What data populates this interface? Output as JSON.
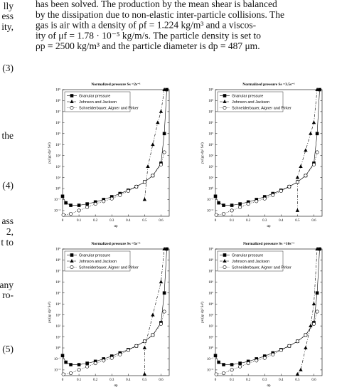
{
  "page": {
    "left_fragments": [
      "lly",
      "ess",
      "ity,",
      "(3)",
      "the",
      "(4)",
      "ass",
      "2,",
      "t to",
      "any",
      "ro-",
      "(5)"
    ],
    "top_lines": [
      "has been solved. The production by the mean shear is balanced",
      "by the dissipation due to non-elastic inter-particle collisions. The",
      "gas is air with a density of ρf = 1.224 kg/m³ and a viscos-",
      "ity of μf = 1.78 · 10⁻⁵ kg/m/s. The particle density is set to",
      "ρp = 2500 kg/m³ and the particle diameter is dp = 487 μm."
    ]
  },
  "chart_data": [
    {
      "type": "line",
      "title": "Normalized pressure Ss =2s⁻¹",
      "xlabel": "αp",
      "ylabel": "ps/(ρp dp² Ss²)",
      "xlim": [
        0,
        0.65
      ],
      "xticks": [
        0,
        0.1,
        0.2,
        0.3,
        0.4,
        0.5,
        0.6
      ],
      "ylim": [
        0.003,
        1000000000
      ],
      "log_y": true,
      "yticks": [
        {
          "value": 0.01,
          "label": "10⁻²"
        },
        {
          "value": 0.1,
          "label": "10⁻¹"
        },
        {
          "value": 1,
          "label": "10⁰"
        },
        {
          "value": 10,
          "label": "10¹"
        },
        {
          "value": 100,
          "label": "10²"
        },
        {
          "value": 1000,
          "label": "10³"
        },
        {
          "value": 10000,
          "label": "10⁴"
        },
        {
          "value": 100000,
          "label": "10⁵"
        },
        {
          "value": 1000000,
          "label": "10⁶"
        },
        {
          "value": 10000000,
          "label": "10⁷"
        },
        {
          "value": 100000000,
          "label": "10⁸"
        },
        {
          "value": 1000000000,
          "label": "10⁹"
        }
      ],
      "legend": "upper left",
      "series": [
        {
          "name": "Granular pressure",
          "color": "#000000",
          "marker": "square",
          "dash": "none",
          "x": [
            0,
            0.02,
            0.05,
            0.1,
            0.15,
            0.2,
            0.25,
            0.3,
            0.35,
            0.4,
            0.45,
            0.5,
            0.55,
            0.6,
            0.62,
            0.635
          ],
          "values": [
            0.2,
            0.05,
            0.03,
            0.03,
            0.04,
            0.06,
            0.1,
            0.18,
            0.35,
            0.7,
            1.5,
            4,
            15,
            200,
            100000,
            1000000000
          ]
        },
        {
          "name": "Johnson and Jackson",
          "color": "#000000",
          "marker": "triangle",
          "dash": "4 2 1 2",
          "x": [
            0.5,
            0.52,
            0.55,
            0.58,
            0.6,
            0.62
          ],
          "values": [
            0.1,
            100,
            10000,
            1000000,
            10000000,
            1000000000
          ]
        },
        {
          "name": "Schneiderbauer, Aigner and Pirker",
          "color": "#000000",
          "marker": "circle",
          "dash": "1 1.5",
          "x": [
            0.005,
            0.05,
            0.1,
            0.15,
            0.2,
            0.25,
            0.3,
            0.35,
            0.4,
            0.45,
            0.5,
            0.55,
            0.6,
            0.62
          ],
          "values": [
            0.004,
            0.005,
            0.01,
            0.02,
            0.04,
            0.07,
            0.12,
            0.25,
            0.6,
            1.5,
            4,
            15,
            150,
            2000
          ]
        }
      ]
    },
    {
      "type": "line",
      "title": "Normalized pressure Ss =3.5s⁻¹",
      "xlabel": "αp",
      "ylabel": "ps/(ρp dp² Ss²)",
      "xlim": [
        0,
        0.65
      ],
      "xticks": [
        0,
        0.1,
        0.2,
        0.3,
        0.4,
        0.5,
        0.6
      ],
      "ylim": [
        0.003,
        1000000000
      ],
      "log_y": true,
      "yticks": [
        {
          "value": 0.01,
          "label": "10⁻²"
        },
        {
          "value": 0.1,
          "label": "10⁻¹"
        },
        {
          "value": 1,
          "label": "10⁰"
        },
        {
          "value": 10,
          "label": "10¹"
        },
        {
          "value": 100,
          "label": "10²"
        },
        {
          "value": 1000,
          "label": "10³"
        },
        {
          "value": 10000,
          "label": "10⁴"
        },
        {
          "value": 100000,
          "label": "10⁵"
        },
        {
          "value": 1000000,
          "label": "10⁶"
        },
        {
          "value": 10000000,
          "label": "10⁷"
        },
        {
          "value": 100000000,
          "label": "10⁸"
        },
        {
          "value": 1000000000,
          "label": "10⁹"
        }
      ],
      "legend": "upper left",
      "series": [
        {
          "name": "Granular pressure",
          "color": "#000000",
          "marker": "square",
          "dash": "none",
          "x": [
            0,
            0.02,
            0.05,
            0.1,
            0.15,
            0.2,
            0.25,
            0.3,
            0.35,
            0.4,
            0.45,
            0.5,
            0.55,
            0.6,
            0.62,
            0.635
          ],
          "values": [
            0.2,
            0.05,
            0.03,
            0.03,
            0.04,
            0.06,
            0.1,
            0.18,
            0.35,
            0.7,
            1.5,
            4,
            15,
            200,
            100000,
            1000000000
          ]
        },
        {
          "name": "Johnson and Jackson",
          "color": "#000000",
          "marker": "triangle",
          "dash": "4 2 1 2",
          "x": [
            0.5,
            0.5,
            0.52,
            0.55,
            0.58,
            0.6,
            0.62
          ],
          "values": [
            0.01,
            10,
            100,
            3000,
            100000,
            1000000,
            1000000000
          ]
        },
        {
          "name": "Schneiderbauer, Aigner and Pirker",
          "color": "#000000",
          "marker": "circle",
          "dash": "1 1.5",
          "x": [
            0.005,
            0.05,
            0.1,
            0.15,
            0.2,
            0.25,
            0.3,
            0.35,
            0.4,
            0.45,
            0.5,
            0.55,
            0.6,
            0.62
          ],
          "values": [
            0.004,
            0.005,
            0.01,
            0.02,
            0.04,
            0.07,
            0.12,
            0.25,
            0.6,
            1.5,
            4,
            15,
            150,
            2000
          ]
        }
      ]
    },
    {
      "type": "line",
      "title": "Normalized pressure Ss =5s⁻¹",
      "xlabel": "αp",
      "ylabel": "ps/(ρp dp² Ss²)",
      "xlim": [
        0,
        0.65
      ],
      "xticks": [
        0,
        0.1,
        0.2,
        0.3,
        0.4,
        0.5,
        0.6
      ],
      "ylim": [
        0.003,
        1000000000
      ],
      "log_y": true,
      "yticks": [
        {
          "value": 0.01,
          "label": "10⁻²"
        },
        {
          "value": 0.1,
          "label": "10⁻¹"
        },
        {
          "value": 1,
          "label": "10⁰"
        },
        {
          "value": 10,
          "label": "10¹"
        },
        {
          "value": 100,
          "label": "10²"
        },
        {
          "value": 1000,
          "label": "10³"
        },
        {
          "value": 10000,
          "label": "10⁴"
        },
        {
          "value": 100000,
          "label": "10⁵"
        },
        {
          "value": 1000000,
          "label": "10⁶"
        },
        {
          "value": 10000000,
          "label": "10⁷"
        },
        {
          "value": 100000000,
          "label": "10⁸"
        },
        {
          "value": 1000000000,
          "label": "10⁹"
        }
      ],
      "legend": "upper left",
      "series": [
        {
          "name": "Granular pressure",
          "color": "#000000",
          "marker": "square",
          "dash": "none",
          "x": [
            0,
            0.02,
            0.05,
            0.1,
            0.15,
            0.2,
            0.25,
            0.3,
            0.35,
            0.4,
            0.45,
            0.5,
            0.55,
            0.6,
            0.62,
            0.635
          ],
          "values": [
            0.2,
            0.05,
            0.03,
            0.03,
            0.04,
            0.06,
            0.1,
            0.18,
            0.35,
            0.7,
            1.5,
            4,
            15,
            200,
            100000,
            1000000000
          ]
        },
        {
          "name": "Johnson and Jackson",
          "color": "#000000",
          "marker": "triangle",
          "dash": "4 2 1 2",
          "x": [
            0.5,
            0.5,
            0.55,
            0.6,
            0.62
          ],
          "values": [
            0.004,
            1,
            1000,
            1000000,
            1000000000
          ]
        },
        {
          "name": "Schneiderbauer, Aigner and Pirker",
          "color": "#000000",
          "marker": "circle",
          "dash": "1 1.5",
          "x": [
            0.005,
            0.05,
            0.1,
            0.15,
            0.2,
            0.25,
            0.3,
            0.35,
            0.4,
            0.45,
            0.5,
            0.55,
            0.6,
            0.62
          ],
          "values": [
            0.004,
            0.005,
            0.01,
            0.02,
            0.04,
            0.07,
            0.12,
            0.25,
            0.6,
            1.5,
            4,
            15,
            150,
            2000
          ]
        }
      ]
    },
    {
      "type": "line",
      "title": "Normalized pressure Ss =10s⁻¹",
      "xlabel": "αp",
      "ylabel": "ps/(ρp dp² Ss²)",
      "xlim": [
        0,
        0.65
      ],
      "xticks": [
        0,
        0.1,
        0.2,
        0.3,
        0.4,
        0.5,
        0.6
      ],
      "ylim": [
        0.003,
        1000000000
      ],
      "log_y": true,
      "yticks": [
        {
          "value": 0.01,
          "label": "10⁻²"
        },
        {
          "value": 0.1,
          "label": "10⁻¹"
        },
        {
          "value": 1,
          "label": "10⁰"
        },
        {
          "value": 10,
          "label": "10¹"
        },
        {
          "value": 100,
          "label": "10²"
        },
        {
          "value": 1000,
          "label": "10³"
        },
        {
          "value": 10000,
          "label": "10⁴"
        },
        {
          "value": 100000,
          "label": "10⁵"
        },
        {
          "value": 1000000,
          "label": "10⁶"
        },
        {
          "value": 10000000,
          "label": "10⁷"
        },
        {
          "value": 100000000,
          "label": "10⁸"
        },
        {
          "value": 1000000000,
          "label": "10⁹"
        }
      ],
      "legend": "upper left",
      "series": [
        {
          "name": "Granular pressure",
          "color": "#000000",
          "marker": "square",
          "dash": "none",
          "x": [
            0,
            0.02,
            0.05,
            0.1,
            0.15,
            0.2,
            0.25,
            0.3,
            0.35,
            0.4,
            0.45,
            0.5,
            0.55,
            0.6,
            0.62,
            0.635
          ],
          "values": [
            0.2,
            0.05,
            0.03,
            0.03,
            0.04,
            0.06,
            0.1,
            0.18,
            0.35,
            0.7,
            1.5,
            4,
            15,
            200,
            100000,
            1000000000
          ]
        },
        {
          "name": "Johnson and Jackson",
          "color": "#000000",
          "marker": "triangle",
          "dash": "4 2 1 2",
          "x": [
            0.5,
            0.52,
            0.55,
            0.58,
            0.6,
            0.62
          ],
          "values": [
            0.004,
            0.01,
            1,
            100,
            10000,
            1000000000
          ]
        },
        {
          "name": "Schneiderbauer, Aigner and Pirker",
          "color": "#000000",
          "marker": "circle",
          "dash": "1 1.5",
          "x": [
            0.005,
            0.05,
            0.1,
            0.15,
            0.2,
            0.25,
            0.3,
            0.35,
            0.4,
            0.45,
            0.5,
            0.55,
            0.6,
            0.62
          ],
          "values": [
            0.004,
            0.005,
            0.01,
            0.02,
            0.04,
            0.07,
            0.12,
            0.25,
            0.6,
            1.5,
            4,
            15,
            150,
            2000
          ]
        }
      ]
    }
  ]
}
